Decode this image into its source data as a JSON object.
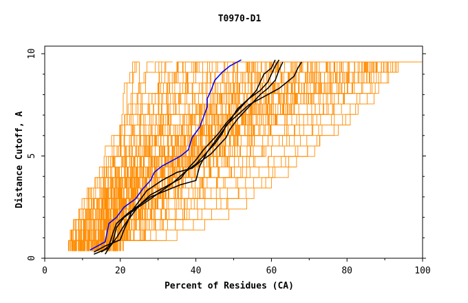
{
  "chart_data": {
    "type": "line",
    "title": "T0970-D1",
    "xlabel": "Percent of Residues (CA)",
    "ylabel": "Distance Cutoff, A",
    "xlim": [
      0,
      100
    ],
    "ylim": [
      0,
      10
    ],
    "x_ticks": [
      "0",
      "20",
      "40",
      "60",
      "80",
      "100"
    ],
    "y_ticks": [
      "0",
      "5",
      "10"
    ],
    "grid": false,
    "colors": {
      "background_curves": "#ff8c00",
      "highlight_primary": "#0000ff",
      "highlight_secondary": "#000000",
      "axes": "#000000"
    },
    "series": [
      {
        "role": "highlight-primary",
        "color": "#0000ff",
        "points": [
          [
            12,
            0.4
          ],
          [
            16,
            0.8
          ],
          [
            17,
            1.7
          ],
          [
            19,
            2.0
          ],
          [
            21,
            2.5
          ],
          [
            24,
            2.9
          ],
          [
            26,
            3.4
          ],
          [
            28,
            3.8
          ],
          [
            29,
            4.2
          ],
          [
            31,
            4.5
          ],
          [
            33,
            4.7
          ],
          [
            36,
            5.0
          ],
          [
            38,
            5.3
          ],
          [
            39,
            5.9
          ],
          [
            41,
            6.4
          ],
          [
            42,
            6.9
          ],
          [
            43,
            7.4
          ],
          [
            43,
            7.8
          ],
          [
            44,
            8.2
          ],
          [
            45,
            8.7
          ],
          [
            47,
            9.1
          ],
          [
            49,
            9.4
          ],
          [
            52,
            9.7
          ]
        ]
      },
      {
        "role": "highlight-secondary",
        "color": "#000000",
        "points": [
          [
            15,
            0.3
          ],
          [
            17,
            0.6
          ],
          [
            18,
            1.2
          ],
          [
            19,
            1.7
          ],
          [
            22,
            2.2
          ],
          [
            25,
            2.6
          ],
          [
            28,
            3.0
          ],
          [
            32,
            3.3
          ],
          [
            36,
            3.6
          ],
          [
            40,
            3.8
          ],
          [
            41,
            4.5
          ],
          [
            43,
            5.2
          ],
          [
            45,
            5.7
          ],
          [
            47,
            6.2
          ],
          [
            49,
            6.7
          ],
          [
            51,
            7.3
          ],
          [
            54,
            7.8
          ],
          [
            57,
            8.2
          ],
          [
            59,
            8.6
          ],
          [
            60,
            9.0
          ],
          [
            61,
            9.4
          ],
          [
            62,
            9.7
          ]
        ]
      },
      {
        "role": "highlight-secondary",
        "color": "#000000",
        "points": [
          [
            16,
            0.2
          ],
          [
            18,
            0.8
          ],
          [
            19,
            1.5
          ],
          [
            21,
            2.0
          ],
          [
            24,
            2.4
          ],
          [
            28,
            2.9
          ],
          [
            31,
            3.3
          ],
          [
            34,
            3.7
          ],
          [
            37,
            4.2
          ],
          [
            40,
            4.6
          ],
          [
            42,
            5.0
          ],
          [
            45,
            5.6
          ],
          [
            47,
            6.1
          ],
          [
            48,
            6.5
          ],
          [
            51,
            7.0
          ],
          [
            54,
            7.5
          ],
          [
            58,
            7.9
          ],
          [
            62,
            8.3
          ],
          [
            64,
            8.6
          ],
          [
            66,
            8.9
          ],
          [
            67,
            9.3
          ],
          [
            68,
            9.6
          ]
        ]
      },
      {
        "role": "highlight-secondary",
        "color": "#000000",
        "points": [
          [
            13,
            0.3
          ],
          [
            16,
            0.6
          ],
          [
            20,
            0.9
          ],
          [
            21,
            1.4
          ],
          [
            22,
            1.8
          ],
          [
            23,
            2.3
          ],
          [
            25,
            2.8
          ],
          [
            27,
            3.3
          ],
          [
            31,
            3.8
          ],
          [
            35,
            4.2
          ],
          [
            39,
            4.4
          ],
          [
            41,
            4.7
          ],
          [
            44,
            5.1
          ],
          [
            46,
            5.5
          ],
          [
            48,
            5.9
          ],
          [
            49,
            6.3
          ],
          [
            51,
            6.8
          ],
          [
            53,
            7.2
          ],
          [
            55,
            7.6
          ],
          [
            57,
            8.0
          ],
          [
            59,
            8.3
          ],
          [
            61,
            8.7
          ],
          [
            62,
            9.2
          ],
          [
            63,
            9.6
          ]
        ]
      },
      {
        "role": "highlight-secondary",
        "color": "#000000",
        "points": [
          [
            13,
            0.2
          ],
          [
            17,
            0.5
          ],
          [
            19,
            1.0
          ],
          [
            21,
            1.6
          ],
          [
            23,
            2.1
          ],
          [
            25,
            2.6
          ],
          [
            28,
            3.1
          ],
          [
            32,
            3.5
          ],
          [
            36,
            3.9
          ],
          [
            38,
            4.4
          ],
          [
            40,
            4.8
          ],
          [
            42,
            5.3
          ],
          [
            44,
            5.7
          ],
          [
            46,
            6.1
          ],
          [
            48,
            6.6
          ],
          [
            50,
            7.0
          ],
          [
            52,
            7.4
          ],
          [
            54,
            7.8
          ],
          [
            56,
            8.2
          ],
          [
            57,
            8.6
          ],
          [
            58,
            9.0
          ],
          [
            60,
            9.3
          ],
          [
            61,
            9.7
          ]
        ]
      }
    ]
  }
}
